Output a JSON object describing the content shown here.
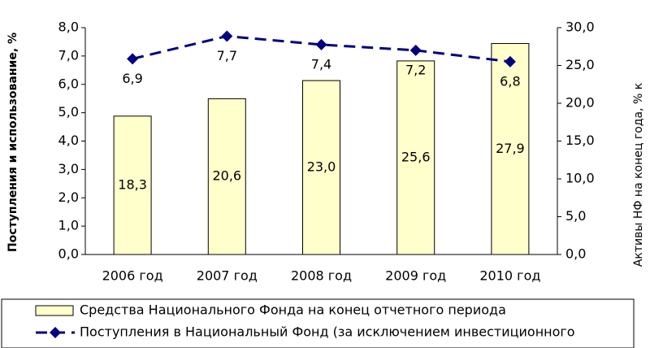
{
  "chart_data": {
    "type": "bar",
    "categories": [
      "2006 год",
      "2007 год",
      "2008 год",
      "2009 год",
      "2010 год"
    ],
    "series": [
      {
        "name": "Средства Национального Фонда на конец отчетного периода",
        "type": "bar",
        "axis": "y2",
        "color": "#ffffcc",
        "values": [
          18.3,
          20.6,
          23.0,
          25.6,
          27.9
        ],
        "value_labels": [
          "18,3",
          "20,6",
          "23,0",
          "25,6",
          "27,9"
        ]
      },
      {
        "name": "Поступления в Национальный Фонд (за исключением инвестиционного",
        "type": "line",
        "axis": "y",
        "color": "#000080",
        "values": [
          6.9,
          7.7,
          7.4,
          7.2,
          6.8
        ],
        "value_labels": [
          "6,9",
          "7,7",
          "7,4",
          "7,2",
          "6,8"
        ]
      }
    ],
    "y_label": "Поступления и использование, %",
    "y2_label": "Активы НФ на конец года, % к",
    "ylim": [
      0,
      8
    ],
    "yticks": [
      {
        "value": 0,
        "label": "0,0"
      },
      {
        "value": 1,
        "label": "1,0"
      },
      {
        "value": 2,
        "label": "2,0"
      },
      {
        "value": 3,
        "label": "3,0"
      },
      {
        "value": 4,
        "label": "4,0"
      },
      {
        "value": 5,
        "label": "5,0"
      },
      {
        "value": 6,
        "label": "6,0"
      },
      {
        "value": 7,
        "label": "7,0"
      },
      {
        "value": 8,
        "label": "8,0"
      }
    ],
    "y2lim": [
      0,
      30
    ],
    "y2ticks": [
      {
        "value": 0,
        "label": "0,0"
      },
      {
        "value": 5,
        "label": "5,0"
      },
      {
        "value": 10,
        "label": "10,0"
      },
      {
        "value": 15,
        "label": "15,0"
      },
      {
        "value": 20,
        "label": "20,0"
      },
      {
        "value": 25,
        "label": "25,0"
      },
      {
        "value": 30,
        "label": "30,0"
      }
    ],
    "legend": "bottom"
  }
}
